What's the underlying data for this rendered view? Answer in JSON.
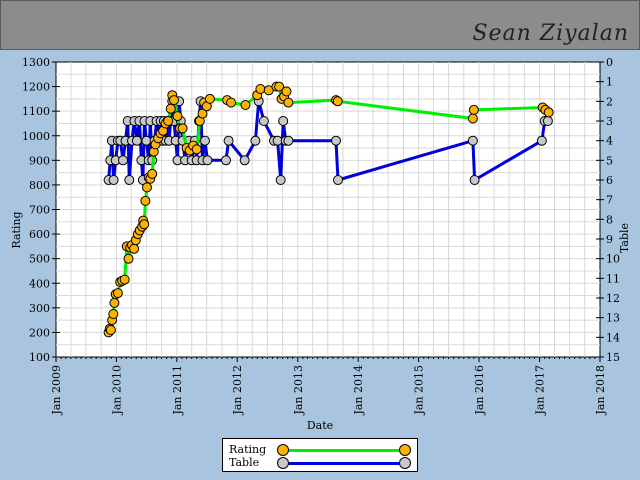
{
  "header": {
    "player_name": "Sean Ziyalan"
  },
  "legend": {
    "rating_label": "Rating",
    "table_label": "Table"
  },
  "colors": {
    "rating_line": "#00ee00",
    "rating_marker": "#ffb300",
    "table_line": "#0000d8",
    "table_marker": "#c8c8c8"
  },
  "chart_data": {
    "type": "line",
    "title": "",
    "xlabel": "Date",
    "ylabel": "Rating",
    "y2label": "Table",
    "ylim": [
      100,
      1300
    ],
    "y2lim": [
      15,
      0
    ],
    "y2_inverted": true,
    "xlim": [
      "2009-01-01",
      "2018-01-01"
    ],
    "x_tick_labels": [
      "Jan 2009",
      "Jan 2010",
      "Jan 2011",
      "Jan 2012",
      "Jan 2013",
      "Jan 2014",
      "Jan 2015",
      "Jan 2016",
      "Jan 2017",
      "Jan 2018"
    ],
    "y_tick_labels": [
      "100",
      "200",
      "300",
      "400",
      "500",
      "600",
      "700",
      "800",
      "900",
      "1000",
      "1100",
      "1200",
      "1300"
    ],
    "y2_tick_labels": [
      "0",
      "1",
      "2",
      "3",
      "4",
      "5",
      "6",
      "7",
      "8",
      "9",
      "10",
      "11",
      "12",
      "13",
      "14",
      "15"
    ],
    "grid": true,
    "legend_position": "bottom-center",
    "series": [
      {
        "name": "Rating",
        "axis": "left",
        "points": [
          [
            "2009-11-15",
            200
          ],
          [
            "2009-11-22",
            215
          ],
          [
            "2009-11-29",
            210
          ],
          [
            "2009-12-06",
            250
          ],
          [
            "2009-12-13",
            275
          ],
          [
            "2009-12-20",
            320
          ],
          [
            "2009-12-28",
            355
          ],
          [
            "2010-01-10",
            360
          ],
          [
            "2010-01-24",
            405
          ],
          [
            "2010-02-05",
            410
          ],
          [
            "2010-02-20",
            415
          ],
          [
            "2010-03-05",
            550
          ],
          [
            "2010-03-15",
            500
          ],
          [
            "2010-03-25",
            545
          ],
          [
            "2010-04-05",
            555
          ],
          [
            "2010-04-18",
            540
          ],
          [
            "2010-04-28",
            575
          ],
          [
            "2010-05-10",
            600
          ],
          [
            "2010-05-22",
            615
          ],
          [
            "2010-06-05",
            630
          ],
          [
            "2010-06-12",
            655
          ],
          [
            "2010-06-18",
            640
          ],
          [
            "2010-06-25",
            735
          ],
          [
            "2010-07-05",
            790
          ],
          [
            "2010-07-15",
            830
          ],
          [
            "2010-07-25",
            825
          ],
          [
            "2010-08-05",
            845
          ],
          [
            "2010-08-15",
            935
          ],
          [
            "2010-08-25",
            965
          ],
          [
            "2010-09-10",
            990
          ],
          [
            "2010-09-25",
            1010
          ],
          [
            "2010-10-10",
            1020
          ],
          [
            "2010-10-25",
            1050
          ],
          [
            "2010-11-10",
            1060
          ],
          [
            "2010-11-25",
            1110
          ],
          [
            "2010-12-05",
            1165
          ],
          [
            "2010-12-15",
            1145
          ],
          [
            "2011-01-05",
            1080
          ],
          [
            "2011-01-20",
            1030
          ],
          [
            "2011-02-05",
            1030
          ],
          [
            "2011-03-01",
            950
          ],
          [
            "2011-03-20",
            940
          ],
          [
            "2011-04-10",
            960
          ],
          [
            "2011-05-01",
            945
          ],
          [
            "2011-05-20",
            1060
          ],
          [
            "2011-06-05",
            1090
          ],
          [
            "2011-06-15",
            1135
          ],
          [
            "2011-07-01",
            1120
          ],
          [
            "2011-07-20",
            1150
          ],
          [
            "2011-11-01",
            1145
          ],
          [
            "2011-11-25",
            1135
          ],
          [
            "2012-02-20",
            1125
          ],
          [
            "2012-05-01",
            1165
          ],
          [
            "2012-05-20",
            1190
          ],
          [
            "2012-07-10",
            1185
          ],
          [
            "2012-08-25",
            1200
          ],
          [
            "2012-09-10",
            1200
          ],
          [
            "2012-09-25",
            1150
          ],
          [
            "2012-10-10",
            1160
          ],
          [
            "2012-10-25",
            1180
          ],
          [
            "2012-11-05",
            1135
          ],
          [
            "2013-08-20",
            1145
          ],
          [
            "2013-08-30",
            1140
          ],
          [
            "2015-11-25",
            1070
          ],
          [
            "2015-12-01",
            1105
          ],
          [
            "2017-01-20",
            1115
          ],
          [
            "2017-02-05",
            1105
          ],
          [
            "2017-02-25",
            1095
          ]
        ]
      },
      {
        "name": "Table",
        "axis": "right",
        "points": [
          [
            "2009-11-15",
            6
          ],
          [
            "2009-11-25",
            5
          ],
          [
            "2009-12-05",
            4
          ],
          [
            "2009-12-15",
            6
          ],
          [
            "2009-12-28",
            5
          ],
          [
            "2010-01-10",
            4
          ],
          [
            "2010-01-25",
            4
          ],
          [
            "2010-02-10",
            5
          ],
          [
            "2010-02-25",
            4
          ],
          [
            "2010-03-10",
            3
          ],
          [
            "2010-03-20",
            6
          ],
          [
            "2010-04-05",
            4
          ],
          [
            "2010-04-20",
            3
          ],
          [
            "2010-05-05",
            4
          ],
          [
            "2010-05-20",
            3
          ],
          [
            "2010-06-01",
            5
          ],
          [
            "2010-06-10",
            6
          ],
          [
            "2010-06-20",
            3
          ],
          [
            "2010-07-01",
            4
          ],
          [
            "2010-07-15",
            5
          ],
          [
            "2010-07-25",
            3
          ],
          [
            "2010-08-05",
            5
          ],
          [
            "2010-08-20",
            4
          ],
          [
            "2010-09-01",
            3
          ],
          [
            "2010-09-15",
            4
          ],
          [
            "2010-09-25",
            3
          ],
          [
            "2010-10-05",
            4
          ],
          [
            "2010-10-15",
            3
          ],
          [
            "2010-10-25",
            4
          ],
          [
            "2010-11-05",
            3
          ],
          [
            "2010-11-15",
            4
          ],
          [
            "2010-11-25",
            3
          ],
          [
            "2010-12-05",
            2
          ],
          [
            "2010-12-15",
            3
          ],
          [
            "2010-12-25",
            4
          ],
          [
            "2011-01-05",
            5
          ],
          [
            "2011-01-15",
            2
          ],
          [
            "2011-01-25",
            3
          ],
          [
            "2011-02-05",
            4
          ],
          [
            "2011-02-20",
            5
          ],
          [
            "2011-03-15",
            4
          ],
          [
            "2011-04-01",
            5
          ],
          [
            "2011-04-20",
            4
          ],
          [
            "2011-05-01",
            5
          ],
          [
            "2011-05-15",
            3
          ],
          [
            "2011-05-25",
            2
          ],
          [
            "2011-06-05",
            5
          ],
          [
            "2011-06-20",
            4
          ],
          [
            "2011-07-05",
            5
          ],
          [
            "2011-10-25",
            5
          ],
          [
            "2011-11-10",
            4
          ],
          [
            "2012-02-15",
            5
          ],
          [
            "2012-04-20",
            4
          ],
          [
            "2012-05-10",
            2
          ],
          [
            "2012-06-10",
            3
          ],
          [
            "2012-08-10",
            4
          ],
          [
            "2012-09-01",
            4
          ],
          [
            "2012-09-20",
            6
          ],
          [
            "2012-10-05",
            3
          ],
          [
            "2012-10-20",
            4
          ],
          [
            "2012-11-05",
            4
          ],
          [
            "2013-08-20",
            4
          ],
          [
            "2013-09-01",
            6
          ],
          [
            "2015-11-25",
            4
          ],
          [
            "2015-12-05",
            6
          ],
          [
            "2017-01-15",
            4
          ],
          [
            "2017-02-01",
            3
          ],
          [
            "2017-02-20",
            3
          ]
        ]
      }
    ]
  }
}
